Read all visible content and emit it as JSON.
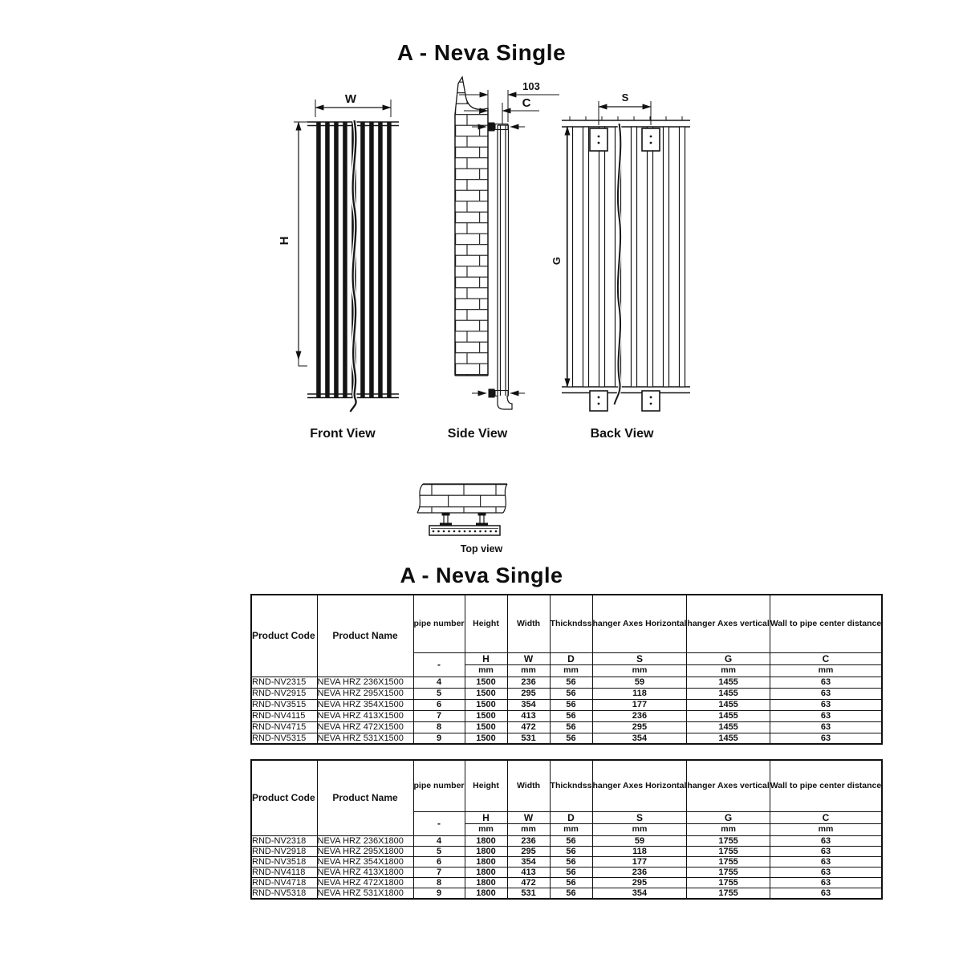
{
  "titles": {
    "drawing_section": "A - Neva Single",
    "table_section": "A - Neva Single"
  },
  "drawings": {
    "front": {
      "label": "Front View",
      "dim_width": "W",
      "dim_height": "H"
    },
    "side": {
      "label": "Side View",
      "dim_offset": "103",
      "dim_wall": "C"
    },
    "back": {
      "label": "Back View",
      "dim_hanger_h": "S",
      "dim_hanger_v": "G"
    },
    "top": {
      "label": "Top view"
    }
  },
  "tables": [
    {
      "header": {
        "columns": [
          "Product Code",
          "Product Name",
          "pipe number",
          "Height",
          "Width",
          "Thickndss",
          "hanger Axes Horizontal",
          "hanger Axes vertical",
          "Wall to pipe center distance"
        ],
        "symbols": [
          "-",
          "H",
          "W",
          "D",
          "S",
          "G",
          "C"
        ],
        "units": [
          "mm",
          "mm",
          "mm",
          "mm",
          "mm",
          "mm"
        ]
      },
      "rows": [
        [
          "RND-NV2315",
          "NEVA HRZ 236X1500",
          "4",
          "1500",
          "236",
          "56",
          "59",
          "1455",
          "63"
        ],
        [
          "RND-NV2915",
          "NEVA HRZ 295X1500",
          "5",
          "1500",
          "295",
          "56",
          "118",
          "1455",
          "63"
        ],
        [
          "RND-NV3515",
          "NEVA HRZ 354X1500",
          "6",
          "1500",
          "354",
          "56",
          "177",
          "1455",
          "63"
        ],
        [
          "RND-NV4115",
          "NEVA HRZ 413X1500",
          "7",
          "1500",
          "413",
          "56",
          "236",
          "1455",
          "63"
        ],
        [
          "RND-NV4715",
          "NEVA HRZ 472X1500",
          "8",
          "1500",
          "472",
          "56",
          "295",
          "1455",
          "63"
        ],
        [
          "RND-NV5315",
          "NEVA HRZ 531X1500",
          "9",
          "1500",
          "531",
          "56",
          "354",
          "1455",
          "63"
        ]
      ]
    },
    {
      "header": {
        "columns": [
          "Product Code",
          "Product Name",
          "pipe number",
          "Height",
          "Width",
          "Thickndss",
          "hanger Axes Horizontal",
          "hanger Axes vertical",
          "Wall to pipe center distance"
        ],
        "symbols": [
          "-",
          "H",
          "W",
          "D",
          "S",
          "G",
          "C"
        ],
        "units": [
          "mm",
          "mm",
          "mm",
          "mm",
          "mm",
          "mm"
        ]
      },
      "rows": [
        [
          "RND-NV2318",
          "NEVA HRZ 236X1800",
          "4",
          "1800",
          "236",
          "56",
          "59",
          "1755",
          "63"
        ],
        [
          "RND-NV2918",
          "NEVA HRZ 295X1800",
          "5",
          "1800",
          "295",
          "56",
          "118",
          "1755",
          "63"
        ],
        [
          "RND-NV3518",
          "NEVA HRZ 354X1800",
          "6",
          "1800",
          "354",
          "56",
          "177",
          "1755",
          "63"
        ],
        [
          "RND-NV4118",
          "NEVA HRZ 413X1800",
          "7",
          "1800",
          "413",
          "56",
          "236",
          "1755",
          "63"
        ],
        [
          "RND-NV4718",
          "NEVA HRZ 472X1800",
          "8",
          "1800",
          "472",
          "56",
          "295",
          "1755",
          "63"
        ],
        [
          "RND-NV5318",
          "NEVA HRZ 531X1800",
          "9",
          "1800",
          "531",
          "56",
          "354",
          "1755",
          "63"
        ]
      ]
    }
  ]
}
